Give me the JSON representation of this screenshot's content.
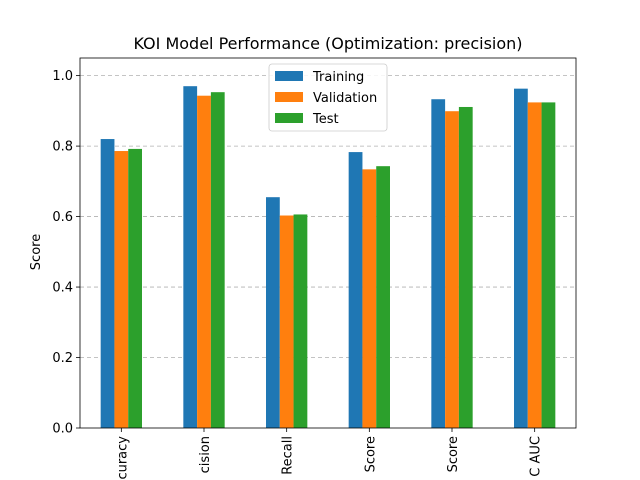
{
  "chart_data": {
    "type": "bar",
    "title": "KOI Model Performance (Optimization: precision)",
    "xlabel": "",
    "ylabel": "Score",
    "ylim": [
      0,
      1.05
    ],
    "yticks": [
      0.0,
      0.2,
      0.4,
      0.6,
      0.8,
      1.0
    ],
    "ytick_labels": [
      "0.0",
      "0.2",
      "0.4",
      "0.6",
      "0.8",
      "1.0"
    ],
    "grid": "horizontal dashed",
    "legend_position": "top-center",
    "categories": [
      "curacy",
      "cision",
      "Recall",
      "Score",
      "Score",
      "C AUC"
    ],
    "series": [
      {
        "name": "Training",
        "color": "#1f77b4",
        "values": [
          0.82,
          0.97,
          0.655,
          0.783,
          0.933,
          0.963
        ]
      },
      {
        "name": "Validation",
        "color": "#ff7f0e",
        "values": [
          0.786,
          0.943,
          0.603,
          0.734,
          0.899,
          0.924
        ]
      },
      {
        "name": "Test",
        "color": "#2ca02c",
        "values": [
          0.792,
          0.953,
          0.606,
          0.743,
          0.911,
          0.924
        ]
      }
    ]
  }
}
